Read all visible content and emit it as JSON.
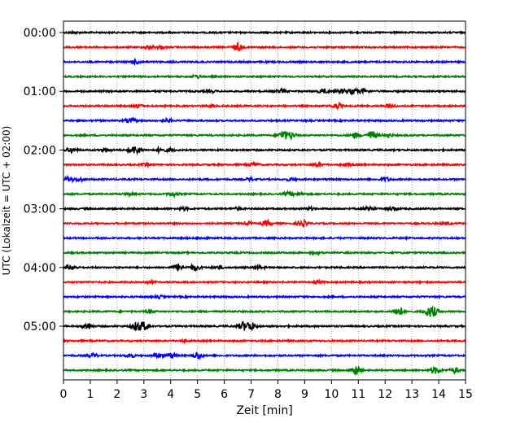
{
  "chart_data": {
    "type": "line",
    "chart_kind": "helicorder",
    "xlabel": "Zeit  [min]",
    "ylabel": "UTC (Lokalzeit = UTC + 02:00)",
    "xlim": [
      0,
      15
    ],
    "x_ticks": [
      "0",
      "1",
      "2",
      "3",
      "4",
      "5",
      "6",
      "7",
      "8",
      "9",
      "10",
      "11",
      "12",
      "13",
      "14",
      "15"
    ],
    "y_ticks": [
      {
        "label": "00:00",
        "row": 0
      },
      {
        "label": "01:00",
        "row": 4
      },
      {
        "label": "02:00",
        "row": 8
      },
      {
        "label": "03:00",
        "row": 12
      },
      {
        "label": "04:00",
        "row": 16
      },
      {
        "label": "05:00",
        "row": 20
      }
    ],
    "grid": "vertical",
    "row_colors": [
      "#000000",
      "#ff0000",
      "#0000ff",
      "#008000"
    ],
    "rows": [
      {
        "start": "00:00",
        "events": [
          [
            0.4,
            0.8
          ]
        ]
      },
      {
        "start": "00:15",
        "events": [
          [
            3.2,
            1.5
          ],
          [
            3.6,
            1.5
          ],
          [
            6.5,
            3.5
          ]
        ]
      },
      {
        "start": "00:30",
        "events": [
          [
            2.7,
            2
          ]
        ]
      },
      {
        "start": "00:45",
        "events": [
          [
            5.0,
            1.5
          ]
        ]
      },
      {
        "start": "01:00",
        "events": [
          [
            5.5,
            1
          ],
          [
            8.1,
            1.5
          ],
          [
            9.7,
            2
          ],
          [
            10.4,
            2
          ],
          [
            10.8,
            2.5
          ],
          [
            11.2,
            2
          ]
        ]
      },
      {
        "start": "01:15",
        "events": [
          [
            2.8,
            1.5
          ],
          [
            5.5,
            1
          ],
          [
            10.2,
            2.5
          ],
          [
            12.2,
            2
          ]
        ]
      },
      {
        "start": "01:30",
        "events": [
          [
            2.5,
            2.5
          ],
          [
            3.9,
            1.5
          ]
        ]
      },
      {
        "start": "01:45",
        "events": [
          [
            8.2,
            4
          ],
          [
            8.5,
            3
          ],
          [
            10.9,
            2.5
          ],
          [
            11.5,
            4
          ],
          [
            12.1,
            2
          ]
        ]
      },
      {
        "start": "02:00",
        "events": [
          [
            0.3,
            2.5
          ],
          [
            1.6,
            1.5
          ],
          [
            2.6,
            3
          ],
          [
            2.8,
            2
          ],
          [
            3.6,
            2
          ],
          [
            4.0,
            1.5
          ]
        ]
      },
      {
        "start": "02:15",
        "events": [
          [
            3.1,
            1.2
          ],
          [
            7.1,
            2
          ],
          [
            9.5,
            1.5
          ],
          [
            10.6,
            1
          ]
        ]
      },
      {
        "start": "02:30",
        "events": [
          [
            0.2,
            2
          ],
          [
            0.6,
            1.5
          ],
          [
            7.0,
            1.5
          ],
          [
            12.0,
            2
          ],
          [
            8.5,
            1
          ]
        ]
      },
      {
        "start": "02:45",
        "events": [
          [
            2.4,
            1
          ],
          [
            4.1,
            2
          ],
          [
            8.4,
            2
          ],
          [
            8.8,
            1.5
          ]
        ]
      },
      {
        "start": "03:00",
        "events": [
          [
            4.5,
            1
          ],
          [
            6.5,
            1.2
          ],
          [
            9.2,
            1.2
          ],
          [
            11.4,
            2.5
          ],
          [
            12.3,
            1.5
          ]
        ]
      },
      {
        "start": "03:15",
        "events": [
          [
            6.9,
            1.5
          ],
          [
            7.6,
            2.5
          ],
          [
            8.9,
            3
          ],
          [
            14.3,
            1
          ]
        ]
      },
      {
        "start": "03:30",
        "events": [
          [
            5.2,
            0.8
          ]
        ]
      },
      {
        "start": "03:45",
        "events": [
          [
            9.4,
            0.8
          ]
        ]
      },
      {
        "start": "04:00",
        "events": [
          [
            0.3,
            2
          ],
          [
            4.3,
            3.5
          ],
          [
            4.9,
            3
          ],
          [
            5.8,
            1.5
          ],
          [
            7.3,
            1.5
          ]
        ]
      },
      {
        "start": "04:15",
        "events": [
          [
            3.2,
            1
          ],
          [
            9.5,
            1
          ]
        ]
      },
      {
        "start": "04:30",
        "events": [
          [
            3.6,
            1
          ]
        ]
      },
      {
        "start": "04:45",
        "events": [
          [
            3.2,
            1.5
          ],
          [
            12.5,
            5
          ],
          [
            13.8,
            4
          ],
          [
            13.6,
            3
          ]
        ]
      },
      {
        "start": "05:00",
        "events": [
          [
            0.9,
            3
          ],
          [
            2.7,
            4
          ],
          [
            3.0,
            4
          ],
          [
            6.7,
            4
          ],
          [
            7.0,
            4
          ]
        ]
      },
      {
        "start": "05:15",
        "events": [
          [
            4.5,
            0.8
          ]
        ]
      },
      {
        "start": "05:30",
        "events": [
          [
            1.1,
            2
          ],
          [
            2.5,
            2
          ],
          [
            3.5,
            2.5
          ],
          [
            4.0,
            2.5
          ],
          [
            5.0,
            3.5
          ]
        ]
      },
      {
        "start": "05:45",
        "events": [
          [
            10.9,
            4.5
          ],
          [
            13.9,
            3
          ],
          [
            14.6,
            2.5
          ]
        ]
      }
    ]
  }
}
